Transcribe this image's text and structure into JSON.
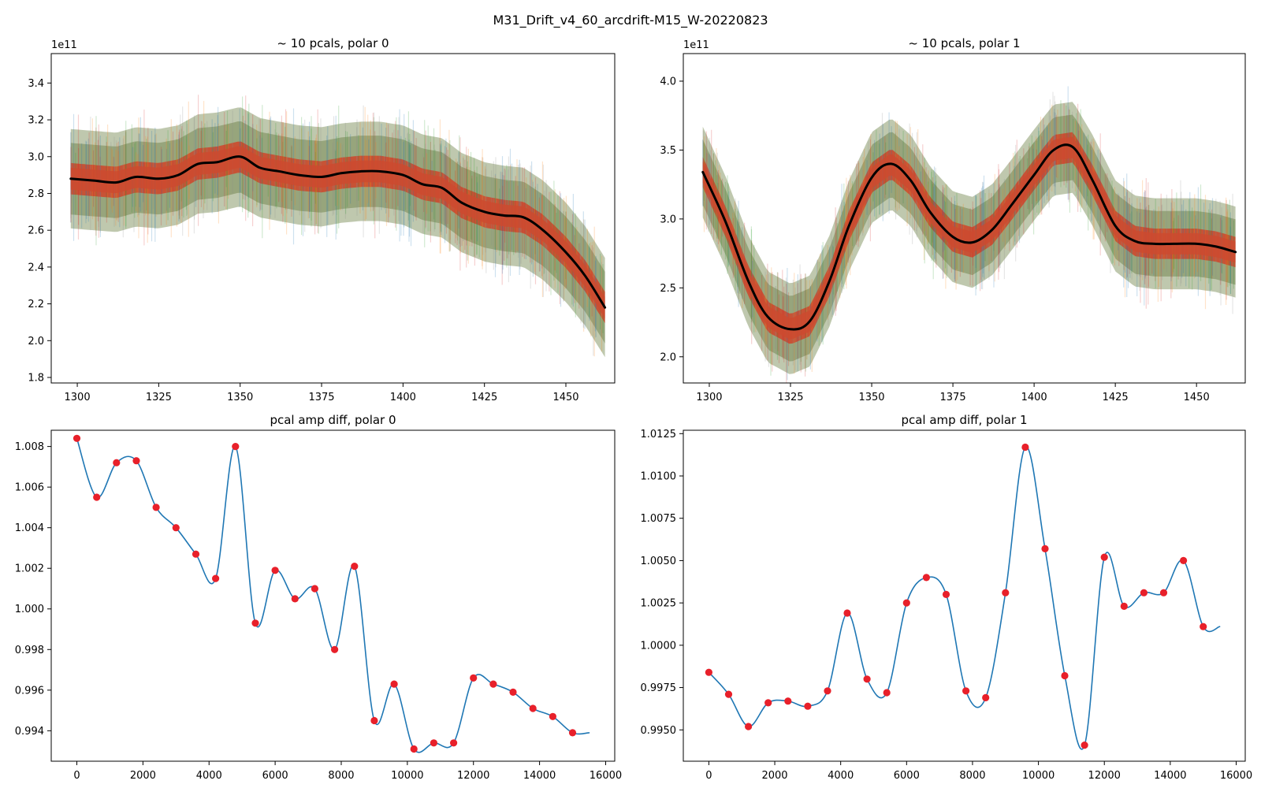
{
  "figure": {
    "suptitle": "M31_Drift_v4_60_arcdrift-M15_W-20220823"
  },
  "chart_data": [
    {
      "type": "line",
      "title": "~ 10 pcals, polar 0",
      "xlabel": "",
      "ylabel": "",
      "xlim": [
        1292,
        1465
      ],
      "ylim": [
        1.77,
        3.56
      ],
      "y_offset_label": "1e11",
      "xticks": [
        "1300",
        "1325",
        "1350",
        "1375",
        "1400",
        "1425",
        "1450"
      ],
      "yticks": [
        "1.8",
        "2.0",
        "2.2",
        "2.4",
        "2.6",
        "2.8",
        "3.0",
        "3.2",
        "3.4"
      ],
      "band_style": {
        "color_background": "#8a9a6b",
        "color_core": "#cc4a2f",
        "outer_halfwidth": 0.27,
        "core_halfwidth": 0.085
      },
      "series": [
        {
          "color": "#000000",
          "x": [
            1298,
            1305,
            1312,
            1318,
            1325,
            1331,
            1337,
            1343,
            1350,
            1356,
            1362,
            1368,
            1375,
            1381,
            1387,
            1393,
            1400,
            1406,
            1412,
            1418,
            1425,
            1431,
            1437,
            1443,
            1450,
            1456,
            1462
          ],
          "y": [
            2.88,
            2.87,
            2.86,
            2.89,
            2.88,
            2.9,
            2.96,
            2.97,
            3.0,
            2.94,
            2.92,
            2.9,
            2.89,
            2.91,
            2.92,
            2.92,
            2.9,
            2.85,
            2.83,
            2.75,
            2.7,
            2.68,
            2.67,
            2.6,
            2.48,
            2.35,
            2.18
          ]
        }
      ]
    },
    {
      "type": "line",
      "title": "~ 10 pcals, polar 1",
      "xlabel": "",
      "ylabel": "",
      "xlim": [
        1292,
        1465
      ],
      "ylim": [
        1.81,
        4.2
      ],
      "y_offset_label": "1e11",
      "xticks": [
        "1300",
        "1325",
        "1350",
        "1375",
        "1400",
        "1425",
        "1450"
      ],
      "yticks": [
        "2.0",
        "2.5",
        "3.0",
        "3.5",
        "4.0"
      ],
      "band_style": {
        "color_background": "#8a9a6b",
        "color_core": "#cc4a2f",
        "outer_halfwidth": 0.33,
        "core_halfwidth": 0.11
      },
      "series": [
        {
          "color": "#000000",
          "x": [
            1298,
            1305,
            1312,
            1318,
            1325,
            1331,
            1337,
            1343,
            1350,
            1356,
            1362,
            1368,
            1375,
            1381,
            1387,
            1393,
            1400,
            1406,
            1412,
            1418,
            1425,
            1431,
            1437,
            1443,
            1450,
            1456,
            1462
          ],
          "y": [
            3.34,
            2.98,
            2.55,
            2.29,
            2.2,
            2.26,
            2.55,
            2.95,
            3.3,
            3.4,
            3.28,
            3.05,
            2.87,
            2.83,
            2.92,
            3.1,
            3.32,
            3.5,
            3.52,
            3.28,
            2.95,
            2.84,
            2.82,
            2.82,
            2.82,
            2.8,
            2.76
          ]
        }
      ]
    },
    {
      "type": "line",
      "title": "pcal amp diff, polar 0",
      "xlabel": "",
      "ylabel": "",
      "xlim": [
        -775,
        16275
      ],
      "ylim": [
        0.9925,
        1.0088
      ],
      "xticks": [
        "0",
        "2000",
        "4000",
        "6000",
        "8000",
        "10000",
        "12000",
        "14000",
        "16000"
      ],
      "yticks": [
        "0.994",
        "0.996",
        "0.998",
        "1.000",
        "1.002",
        "1.004",
        "1.006",
        "1.008"
      ],
      "series": [
        {
          "name": "",
          "color": "#1f77b4",
          "x": [
            0,
            600,
            1200,
            1800,
            2400,
            3000,
            3600,
            4200,
            4800,
            5400,
            6000,
            6600,
            7200,
            7800,
            8400,
            9000,
            9600,
            10200,
            10800,
            11400,
            12000,
            12600,
            13200,
            13800,
            14400,
            15000,
            15500
          ],
          "y": [
            1.0084,
            1.0055,
            1.0072,
            1.0073,
            1.005,
            1.004,
            1.0027,
            1.0015,
            1.008,
            0.9993,
            1.0019,
            1.0005,
            1.001,
            0.998,
            1.0021,
            0.9945,
            0.9963,
            0.9931,
            0.9934,
            0.9934,
            0.9966,
            0.9963,
            0.9959,
            0.9951,
            0.9947,
            0.9939,
            0.9939
          ]
        }
      ],
      "points": {
        "color": "#e8202a",
        "x": [
          0,
          600,
          1200,
          1800,
          2400,
          3000,
          3600,
          4200,
          4800,
          5400,
          6000,
          6600,
          7200,
          7800,
          8400,
          9000,
          9600,
          10200,
          10800,
          11400,
          12000,
          12600,
          13200,
          13800,
          14400,
          15000
        ],
        "y": [
          1.0084,
          1.0055,
          1.0072,
          1.0073,
          1.005,
          1.004,
          1.0027,
          1.0015,
          1.008,
          0.9993,
          1.0019,
          1.0005,
          1.001,
          0.998,
          1.0021,
          0.9945,
          0.9963,
          0.9931,
          0.9934,
          0.9934,
          0.9966,
          0.9963,
          0.9959,
          0.9951,
          0.9947,
          0.9939
        ]
      }
    },
    {
      "type": "line",
      "title": "pcal amp diff, polar 1",
      "xlabel": "",
      "ylabel": "",
      "xlim": [
        -775,
        16275
      ],
      "ylim": [
        0.99315,
        1.0127
      ],
      "xticks": [
        "0",
        "2000",
        "4000",
        "6000",
        "8000",
        "10000",
        "12000",
        "14000",
        "16000"
      ],
      "yticks": [
        "0.9950",
        "0.9975",
        "1.0000",
        "1.0025",
        "1.0050",
        "1.0075",
        "1.0100",
        "1.0125"
      ],
      "series": [
        {
          "name": "",
          "color": "#1f77b4",
          "x": [
            0,
            600,
            1200,
            1800,
            2400,
            3000,
            3600,
            4200,
            4800,
            5400,
            6000,
            6600,
            7200,
            7800,
            8400,
            9000,
            9600,
            10200,
            10800,
            11400,
            12000,
            12600,
            13200,
            13800,
            14400,
            15000,
            15500
          ],
          "y": [
            0.9984,
            0.9971,
            0.9952,
            0.9966,
            0.9967,
            0.9964,
            0.9973,
            1.0019,
            0.998,
            0.9972,
            1.0025,
            1.004,
            1.003,
            0.9973,
            0.9969,
            1.0031,
            1.0117,
            1.0057,
            0.9982,
            0.9941,
            1.0052,
            1.0023,
            1.0031,
            1.0031,
            1.005,
            1.0011,
            1.0011
          ]
        }
      ],
      "points": {
        "color": "#e8202a",
        "x": [
          0,
          600,
          1200,
          1800,
          2400,
          3000,
          3600,
          4200,
          4800,
          5400,
          6000,
          6600,
          7200,
          7800,
          8400,
          9000,
          9600,
          10200,
          10800,
          11400,
          12000,
          12600,
          13200,
          13800,
          14400,
          15000
        ],
        "y": [
          0.9984,
          0.9971,
          0.9952,
          0.9966,
          0.9967,
          0.9964,
          0.9973,
          1.0019,
          0.998,
          0.9972,
          1.0025,
          1.004,
          1.003,
          0.9973,
          0.9969,
          1.0031,
          1.0117,
          1.0057,
          0.9982,
          0.9941,
          1.0052,
          1.0023,
          1.0031,
          1.0031,
          1.005,
          1.0011
        ]
      }
    }
  ]
}
